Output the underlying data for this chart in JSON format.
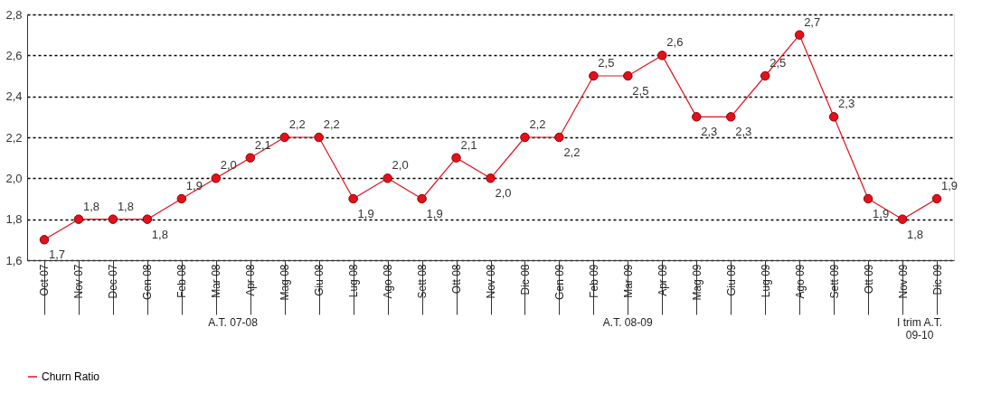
{
  "chart_data": {
    "type": "line",
    "categories": [
      "Oct 07",
      "Nov 07",
      "Dec 07",
      "Gen 08",
      "Feb 08",
      "Mar 08",
      "Apr 08",
      "Mag 08",
      "Giu 08",
      "Lug 08",
      "Ago 08",
      "Sett 08",
      "Ott 08",
      "Nov 08",
      "Dic 08",
      "Gen 09",
      "Feb 09",
      "Mar 09",
      "Apr 09",
      "Mag 09",
      "Giu 09",
      "Lug 09",
      "Ago 09",
      "Sett 09",
      "Ott 09",
      "Nov 09",
      "Dic 09"
    ],
    "series": [
      {
        "name": "Churn Ratio",
        "color": "#e3101c",
        "values": [
          1.7,
          1.8,
          1.8,
          1.8,
          1.9,
          2.0,
          2.1,
          2.2,
          2.2,
          1.9,
          2.0,
          1.9,
          2.1,
          2.0,
          2.2,
          2.2,
          2.5,
          2.5,
          2.6,
          2.3,
          2.3,
          2.5,
          2.7,
          2.3,
          1.9,
          1.8,
          1.9
        ],
        "value_labels": [
          "1,7",
          "1,8",
          "1,8",
          "1,8",
          "1,9",
          "2,0",
          "2,1",
          "2,2",
          "2,2",
          "1,9",
          "2,0",
          "1,9",
          "2,1",
          "2,0",
          "2,2",
          "2,2",
          "2,5",
          "2,5",
          "2,6",
          "2,3",
          "2,3",
          "2,5",
          "2,7",
          "2,3",
          "1,9",
          "1,8",
          "1,9"
        ]
      }
    ],
    "ylim": [
      1.6,
      2.8
    ],
    "yticks": [
      {
        "value": 1.6,
        "label": "1,6"
      },
      {
        "value": 1.8,
        "label": "1,8"
      },
      {
        "value": 2.0,
        "label": "2,0"
      },
      {
        "value": 2.2,
        "label": "2,2"
      },
      {
        "value": 2.4,
        "label": "2,4"
      },
      {
        "value": 2.6,
        "label": "2,6"
      },
      {
        "value": 2.8,
        "label": "2,8"
      }
    ],
    "grid": "y",
    "legend": "bottom",
    "marker": "circle",
    "line_style": "solid",
    "annotations": [
      "A.T. 07-08",
      "A.T. 08-09",
      "I trim A.T. 09-10"
    ]
  }
}
